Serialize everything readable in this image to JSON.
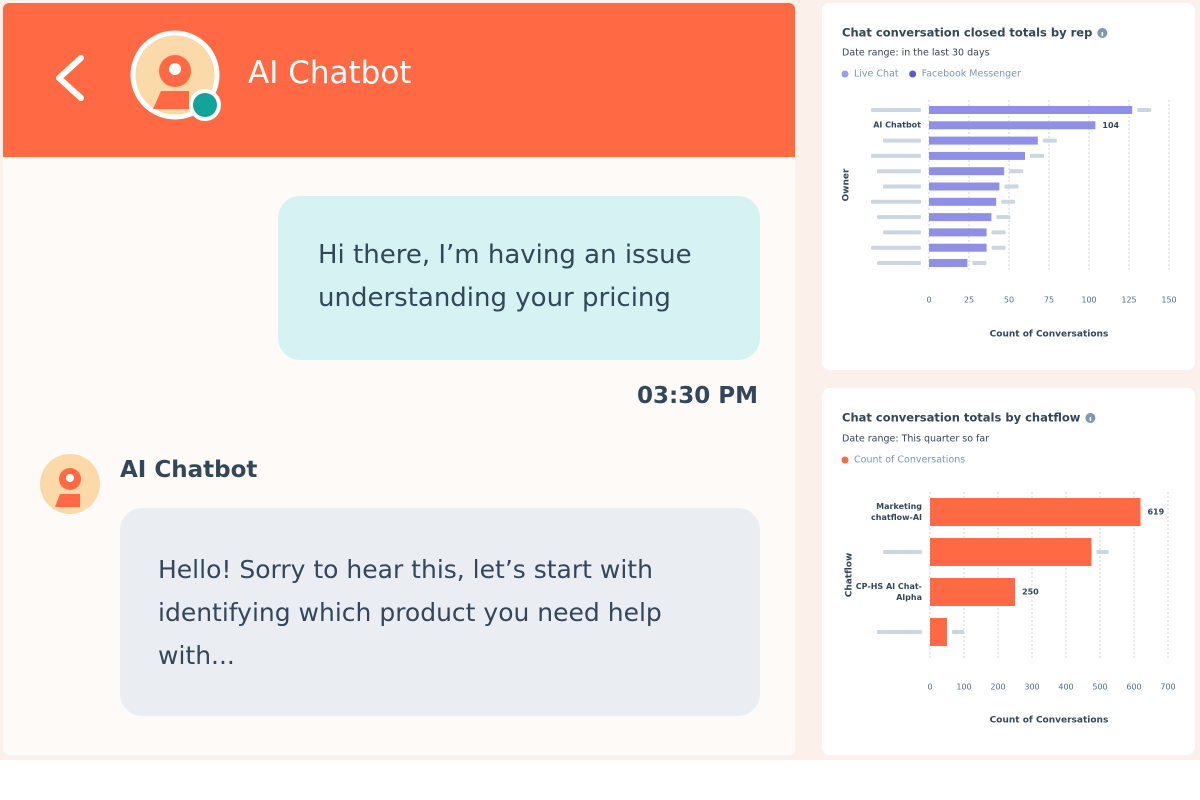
{
  "chat": {
    "header_title": "AI Chatbot",
    "user_message": {
      "text": "Hi there, I’m having an issue understanding your pricing",
      "time": "03:30 PM"
    },
    "bot_message": {
      "sender": "AI Chatbot",
      "text": "Hello! Sorry to hear this, let’s start with identifying which product you need help with..."
    }
  },
  "chart_data": [
    {
      "type": "bar",
      "orientation": "horizontal",
      "title": "Chat conversation closed totals by rep",
      "subtitle": "Date range: in the last 30 days",
      "legend": [
        {
          "name": "Live Chat",
          "color": "#9b9bea"
        },
        {
          "name": "Facebook Messenger",
          "color": "#5a5ad0"
        }
      ],
      "categories": [
        null,
        "AI Chatbot",
        null,
        null,
        null,
        null,
        null,
        null,
        null,
        null,
        null
      ],
      "values": [
        127,
        104,
        68,
        60,
        47,
        44,
        42,
        39,
        36,
        36,
        24
      ],
      "color": "#8f8fe6",
      "xlim": [
        0,
        150
      ],
      "xticks": [
        0,
        25,
        50,
        75,
        100,
        125,
        150
      ],
      "xlabel": "Count of Conversations",
      "ylabel": "Owner",
      "grid": true
    },
    {
      "type": "bar",
      "orientation": "horizontal",
      "title": "Chat conversation totals by chatflow",
      "subtitle": "Date range: This quarter so far",
      "legend": [
        {
          "name": "Count of Conversations",
          "color": "#ff6a45"
        }
      ],
      "categories": [
        "Marketing chatflow-AI",
        null,
        "CP-HS AI Chat-Alpha",
        null
      ],
      "values": [
        619,
        475,
        250,
        50
      ],
      "color": "#ff6a45",
      "xlim": [
        0,
        700
      ],
      "xticks": [
        0,
        100,
        200,
        300,
        400,
        500,
        600,
        700
      ],
      "xlabel": "Count of Conversations",
      "ylabel": "Chatflow",
      "grid": true
    }
  ]
}
